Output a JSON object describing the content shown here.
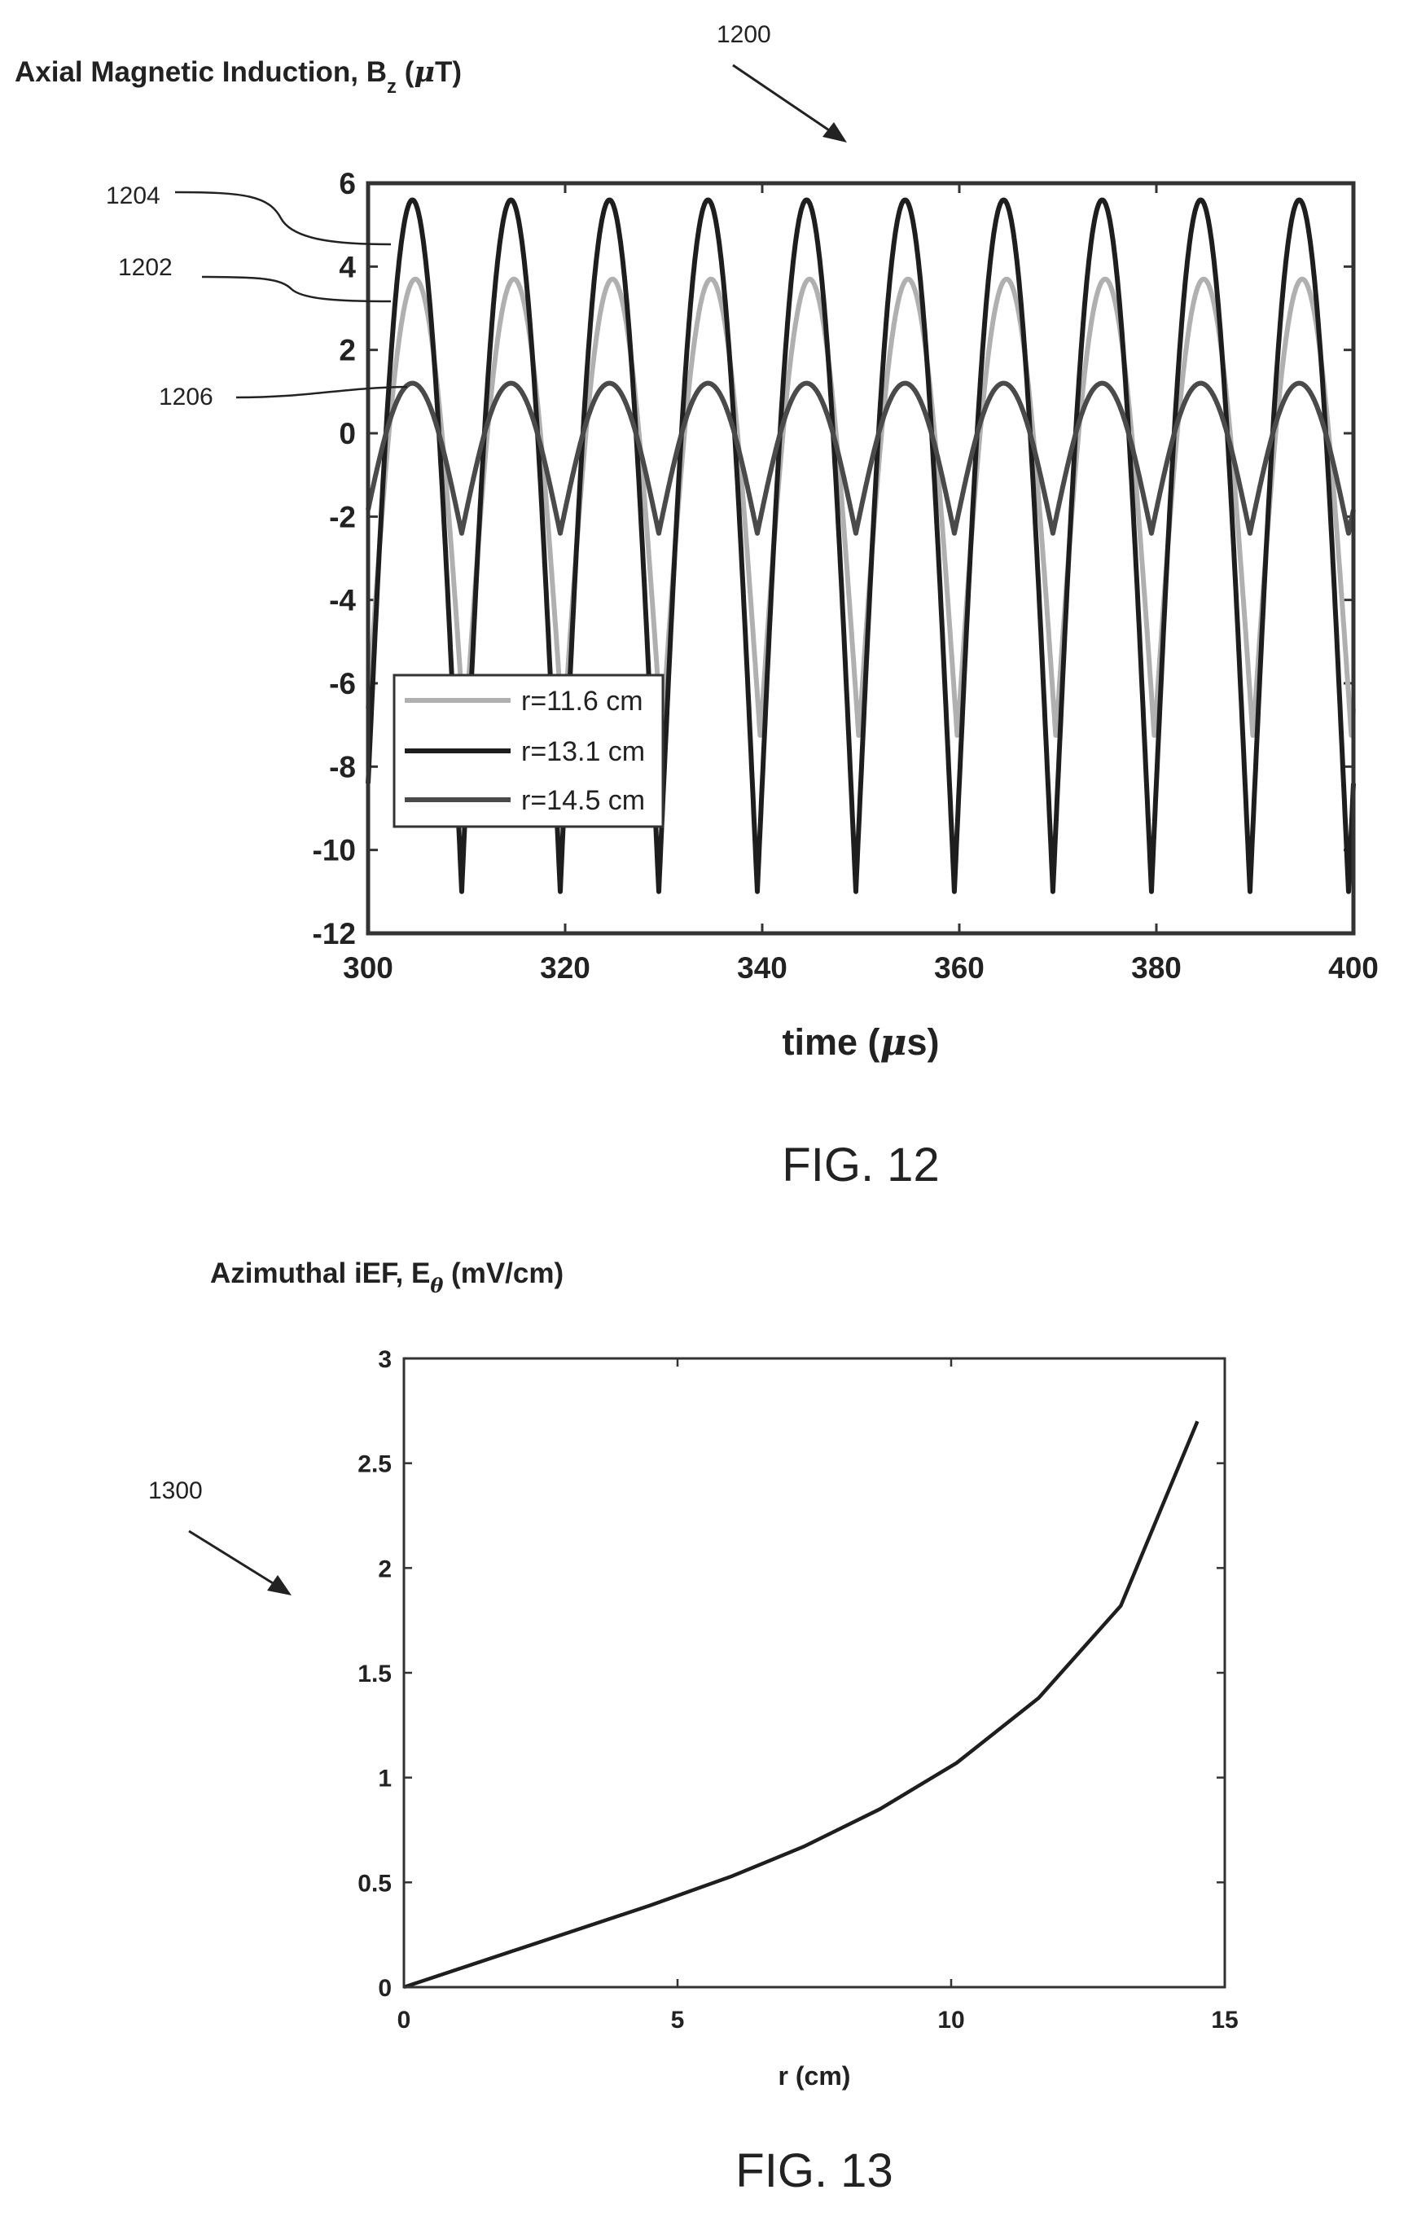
{
  "reference_numerals": {
    "fig12_chart": "1200",
    "curve_top": "1204",
    "curve_middle": "1202",
    "curve_bottom": "1206",
    "fig13_chart": "1300"
  },
  "chart_data": [
    {
      "type": "line",
      "figure_label": "FIG. 12",
      "ylabel": {
        "main": "Axial Magnetic Induction, B",
        "subscript": "z",
        "unit_open": " (",
        "unit_greek": "μ",
        "unit_close": "T)"
      },
      "xlabel": {
        "main": "time (",
        "greek": "μ",
        "close": "s)"
      },
      "xlim": [
        300,
        400
      ],
      "ylim": [
        -12,
        6
      ],
      "xticks": [
        "300",
        "320",
        "340",
        "360",
        "380",
        "400"
      ],
      "yticks": [
        "6",
        "4",
        "2",
        "0",
        "-2",
        "-4",
        "-6",
        "-8",
        "-10",
        "-12"
      ],
      "period_us": 10,
      "grid": false,
      "legend_position": "lower-left",
      "series": [
        {
          "name": "r=11.6 cm",
          "color": "#b0b0b0",
          "peak": 3.7,
          "trough": -7.3,
          "peak_time_offset_us": 4.8
        },
        {
          "name": "r=13.1 cm",
          "color": "#1e1e1e",
          "peak": 5.6,
          "trough": -11.0,
          "peak_time_offset_us": 4.5
        },
        {
          "name": "r=14.5 cm",
          "color": "#4a4a4a",
          "peak": 1.2,
          "trough": -2.4,
          "peak_time_offset_us": 4.5
        }
      ]
    },
    {
      "type": "line",
      "figure_label": "FIG. 13",
      "ylabel": {
        "main": "Azimuthal iEF, E",
        "subscript": "θ",
        "unit": " (mV/cm)"
      },
      "xlabel": "r (cm)",
      "xlim": [
        0,
        15
      ],
      "ylim": [
        0,
        3
      ],
      "xticks": [
        "0",
        "5",
        "10",
        "15"
      ],
      "yticks": [
        "3",
        "2.5",
        "2",
        "1.5",
        "1",
        "0.5",
        "0"
      ],
      "grid": false,
      "series": [
        {
          "color": "#1e1e1e",
          "x": [
            0,
            1.5,
            3,
            4.5,
            6,
            7.3,
            8.7,
            10.1,
            11.6,
            13.1,
            14.5
          ],
          "y": [
            0,
            0.13,
            0.26,
            0.39,
            0.53,
            0.67,
            0.85,
            1.07,
            1.38,
            1.82,
            2.7
          ]
        }
      ]
    }
  ]
}
